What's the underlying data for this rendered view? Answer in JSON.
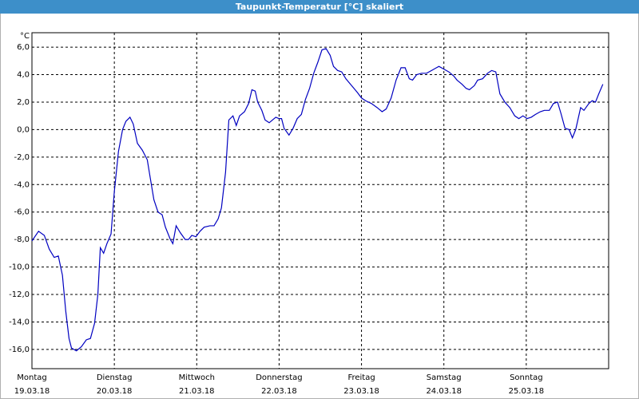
{
  "chart_data": {
    "type": "line",
    "title": "Taupunkt-Temperatur [°C] skaliert",
    "y_unit": "°C",
    "color": "#0000c0",
    "grid": true,
    "xlim": [
      0,
      7
    ],
    "ylim": [
      -17.4,
      7.05
    ],
    "xticks": [
      {
        "value": 0,
        "label": "Montag",
        "date": "19.03.18"
      },
      {
        "value": 1,
        "label": "Dienstag",
        "date": "20.03.18"
      },
      {
        "value": 2,
        "label": "Mittwoch",
        "date": "21.03.18"
      },
      {
        "value": 3,
        "label": "Donnerstag",
        "date": "22.03.18"
      },
      {
        "value": 4,
        "label": "Freitag",
        "date": "23.03.18"
      },
      {
        "value": 5,
        "label": "Samstag",
        "date": "24.03.18"
      },
      {
        "value": 6,
        "label": "Sonntag",
        "date": "25.03.18"
      }
    ],
    "yticks": [
      {
        "value": 6,
        "label": "6,0"
      },
      {
        "value": 4,
        "label": "4,0"
      },
      {
        "value": 2,
        "label": "2,0"
      },
      {
        "value": 0,
        "label": "0,0"
      },
      {
        "value": -2,
        "label": "-2,0"
      },
      {
        "value": -4,
        "label": "-4,0"
      },
      {
        "value": -6,
        "label": "-6,0"
      },
      {
        "value": -8,
        "label": "-8,0"
      },
      {
        "value": -10,
        "label": "-10,0"
      },
      {
        "value": -12,
        "label": "-12,0"
      },
      {
        "value": -14,
        "label": "-14,0"
      },
      {
        "value": -16,
        "label": "-16,0"
      }
    ],
    "x": [
      0,
      0.08,
      0.15,
      0.21,
      0.27,
      0.32,
      0.37,
      0.41,
      0.45,
      0.48,
      0.54,
      0.6,
      0.66,
      0.71,
      0.76,
      0.8,
      0.83,
      0.87,
      0.91,
      0.96,
      1.0,
      1.05,
      1.1,
      1.14,
      1.19,
      1.23,
      1.28,
      1.34,
      1.4,
      1.43,
      1.48,
      1.53,
      1.58,
      1.62,
      1.68,
      1.71,
      1.75,
      1.8,
      1.86,
      1.9,
      1.94,
      1.99,
      2.04,
      2.09,
      2.16,
      2.21,
      2.26,
      2.3,
      2.35,
      2.39,
      2.44,
      2.48,
      2.52,
      2.58,
      2.63,
      2.67,
      2.71,
      2.74,
      2.79,
      2.83,
      2.88,
      2.92,
      2.96,
      3.0,
      3.03,
      3.06,
      3.12,
      3.17,
      3.22,
      3.27,
      3.32,
      3.37,
      3.42,
      3.47,
      3.52,
      3.57,
      3.62,
      3.66,
      3.71,
      3.76,
      3.81,
      3.88,
      3.95,
      4.0,
      4.05,
      4.12,
      4.19,
      4.25,
      4.3,
      4.36,
      4.42,
      4.48,
      4.53,
      4.58,
      4.62,
      4.67,
      4.73,
      4.79,
      4.85,
      4.91,
      4.94,
      5.0,
      5.06,
      5.12,
      5.16,
      5.22,
      5.27,
      5.31,
      5.37,
      5.41,
      5.47,
      5.53,
      5.58,
      5.63,
      5.68,
      5.74,
      5.8,
      5.86,
      5.91,
      5.96,
      6.01,
      6.06,
      6.11,
      6.17,
      6.22,
      6.28,
      6.33,
      6.38,
      6.42,
      6.47,
      6.52,
      6.56,
      6.6,
      6.66,
      6.7,
      6.76,
      6.8,
      6.84,
      6.88,
      6.93
    ],
    "values": [
      -8.1,
      -7.4,
      -7.7,
      -8.7,
      -9.3,
      -9.2,
      -10.6,
      -13.2,
      -15.2,
      -15.9,
      -16.1,
      -15.8,
      -15.3,
      -15.2,
      -14.1,
      -12.0,
      -8.6,
      -9.0,
      -8.3,
      -7.6,
      -4.5,
      -1.6,
      0.0,
      0.6,
      0.9,
      0.4,
      -1.0,
      -1.5,
      -2.2,
      -3.3,
      -5.1,
      -6.0,
      -6.2,
      -7.1,
      -8.0,
      -8.3,
      -7.0,
      -7.5,
      -8.0,
      -8.0,
      -7.7,
      -7.8,
      -7.4,
      -7.1,
      -7.0,
      -7.0,
      -6.5,
      -5.7,
      -3.1,
      0.7,
      1.0,
      0.3,
      1.0,
      1.3,
      1.9,
      2.9,
      2.8,
      2.0,
      1.4,
      0.7,
      0.5,
      0.7,
      0.9,
      0.8,
      0.8,
      0.1,
      -0.4,
      0.1,
      0.8,
      1.1,
      2.2,
      3.0,
      4.1,
      4.9,
      5.8,
      5.9,
      5.4,
      4.6,
      4.3,
      4.2,
      3.7,
      3.2,
      2.7,
      2.3,
      2.1,
      1.9,
      1.6,
      1.3,
      1.5,
      2.3,
      3.6,
      4.5,
      4.5,
      3.7,
      3.6,
      4.0,
      4.1,
      4.1,
      4.3,
      4.5,
      4.6,
      4.4,
      4.2,
      3.9,
      3.6,
      3.3,
      3.0,
      2.9,
      3.2,
      3.6,
      3.7,
      4.1,
      4.3,
      4.2,
      2.6,
      2.0,
      1.6,
      1.0,
      0.8,
      1.0,
      0.8,
      0.9,
      1.1,
      1.3,
      1.4,
      1.4,
      1.9,
      2.0,
      1.2,
      0.1,
      0.0,
      -0.6,
      0.0,
      1.6,
      1.4,
      1.9,
      2.1,
      2.0,
      2.6,
      3.3
    ]
  }
}
